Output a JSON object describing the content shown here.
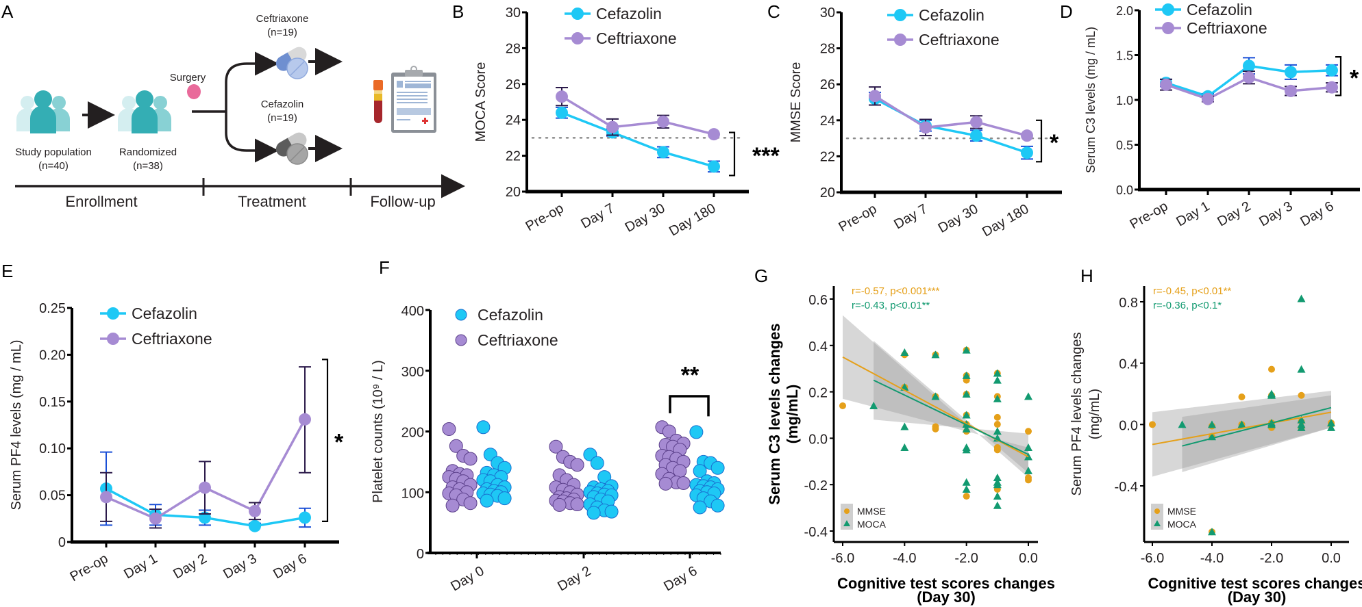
{
  "colors": {
    "cefazolin": "#1ec8f5",
    "cefazolin_err": "#1a4fd6",
    "ceftriaxone": "#a68bd3",
    "ceftriaxone_err": "#2b1a4a",
    "mmse": "#e5a01a",
    "moca": "#129a70",
    "ci_band": "#9a9a9a"
  },
  "panelA": {
    "label": "A",
    "study_population": "Study population",
    "study_population_n": "(n=40)",
    "randomized": "Randomized",
    "randomized_n": "(n=38)",
    "surgery": "Surgery",
    "ceftriaxone": "Ceftriaxone",
    "ceftriaxone_n": "(n=19)",
    "cefazolin": "Cefazolin",
    "cefazolin_n": "(n=19)",
    "phases": [
      "Enrollment",
      "Treatment",
      "Follow-up"
    ],
    "icons": [
      "people-group-icon",
      "people-group-icon",
      "surgery-dot-icon",
      "pills-icon",
      "pills-icon",
      "blood-tube-icon",
      "clipboard-icon"
    ]
  },
  "chart_data": [
    {
      "panel": "B",
      "type": "line",
      "ylabel": "MOCA Score",
      "xlabel": "",
      "categories": [
        "Pre-op",
        "Day 7",
        "Day 30",
        "Day 180"
      ],
      "ylim": [
        20,
        30
      ],
      "yticks": [
        20,
        22,
        24,
        26,
        28,
        30
      ],
      "reference_line": 23,
      "legend": "top",
      "series": [
        {
          "name": "Cefazolin",
          "values": [
            24.4,
            23.3,
            22.2,
            21.4
          ],
          "err": [
            0.3,
            0.2,
            0.3,
            0.3
          ]
        },
        {
          "name": "Ceftriaxone",
          "values": [
            25.3,
            23.6,
            23.9,
            23.2
          ],
          "err": [
            0.5,
            0.45,
            0.35,
            0.0
          ]
        }
      ],
      "significance": "***"
    },
    {
      "panel": "C",
      "type": "line",
      "ylabel": "MMSE Score",
      "xlabel": "",
      "categories": [
        "Pre-op",
        "Day 7",
        "Day 30",
        "Day 180"
      ],
      "ylim": [
        20,
        30
      ],
      "yticks": [
        20,
        22,
        24,
        26,
        28,
        30
      ],
      "reference_line": 23,
      "legend": "top",
      "series": [
        {
          "name": "Cefazolin",
          "values": [
            25.2,
            23.7,
            23.15,
            22.2
          ],
          "err": [
            0.35,
            0.3,
            0.3,
            0.35
          ]
        },
        {
          "name": "Ceftriaxone",
          "values": [
            25.35,
            23.6,
            23.9,
            23.15
          ],
          "err": [
            0.5,
            0.45,
            0.35,
            0.0
          ]
        }
      ],
      "significance": "*"
    },
    {
      "panel": "D",
      "type": "line",
      "ylabel": "Serum C3 levels  (mg / mL)",
      "xlabel": "",
      "categories": [
        "Pre-op",
        "Day 1",
        "Day 2",
        "Day 3",
        "Day 6"
      ],
      "ylim": [
        0,
        2
      ],
      "yticks": [
        "0.0",
        "0.5",
        "1.0",
        "1.5",
        "2.0"
      ],
      "legend": "top",
      "series": [
        {
          "name": "Cefazolin",
          "values": [
            1.19,
            1.04,
            1.38,
            1.31,
            1.33
          ],
          "err": [
            0.04,
            0.03,
            0.09,
            0.08,
            0.06
          ]
        },
        {
          "name": "Ceftriaxone",
          "values": [
            1.17,
            1.01,
            1.25,
            1.1,
            1.14
          ],
          "err": [
            0.06,
            0.03,
            0.07,
            0.05,
            0.05
          ]
        }
      ],
      "significance": "*"
    },
    {
      "panel": "E",
      "type": "line",
      "ylabel": "Serum PF4 levels  (mg / mL)",
      "xlabel": "",
      "categories": [
        "Pre-op",
        "Day 1",
        "Day 2",
        "Day 3",
        "Day 6"
      ],
      "ylim": [
        0,
        0.25
      ],
      "yticks": [
        "0",
        "0.05",
        "0.10",
        "0.15",
        "0.20",
        "0.25"
      ],
      "legend": "top-left",
      "series": [
        {
          "name": "Cefazolin",
          "values": [
            0.057,
            0.029,
            0.026,
            0.017,
            0.026
          ],
          "err_hi": [
            0.096,
            0.04,
            0.034,
            0.02,
            0.036
          ],
          "err_lo": [
            0.018,
            0.018,
            0.018,
            0.017,
            0.016
          ]
        },
        {
          "name": "Ceftriaxone",
          "values": [
            0.048,
            0.025,
            0.058,
            0.033,
            0.131
          ],
          "err_hi": [
            0.074,
            0.035,
            0.086,
            0.042,
            0.187
          ],
          "err_lo": [
            0.022,
            0.015,
            0.03,
            0.024,
            0.074
          ]
        }
      ],
      "significance": "*"
    },
    {
      "panel": "F",
      "type": "scatter",
      "ylabel": "Platelet counts (10⁹ / L)",
      "xlabel": "",
      "categories": [
        "Day 0",
        "Day 2",
        "Day 6"
      ],
      "ylim": [
        0,
        400
      ],
      "yticks": [
        0,
        100,
        200,
        300,
        400
      ],
      "legend": "top-left",
      "series": [
        {
          "name": "Ceftriaxone",
          "means": [
            114,
            111,
            152
          ],
          "values": [
            [
              204,
              176,
              160,
              155,
              135,
              130,
              128,
              125,
              122,
              118,
              112,
              108,
              105,
              100,
              98,
              95,
              88,
              82,
              78
            ],
            [
              175,
              158,
              150,
              145,
              128,
              120,
              112,
              108,
              104,
              100,
              96,
              92,
              90,
              88,
              86,
              85,
              82,
              80,
              79
            ],
            [
              207,
              200,
              185,
              180,
              178,
              175,
              170,
              160,
              158,
              155,
              150,
              145,
              140,
              135,
              130,
              122,
              116,
              115,
              114
            ]
          ]
        },
        {
          "name": "Cefazolin",
          "means": [
            120,
            98,
            118
          ],
          "values": [
            [
              207,
              162,
              148,
              140,
              132,
              128,
              125,
              120,
              118,
              112,
              108,
              105,
              102,
              100,
              98,
              96,
              94,
              90,
              86
            ],
            [
              162,
              148,
              125,
              110,
              108,
              105,
              102,
              100,
              98,
              96,
              95,
              92,
              88,
              85,
              80,
              75,
              70,
              68,
              66
            ],
            [
              199,
              150,
              148,
              140,
              135,
              118,
              115,
              112,
              110,
              108,
              105,
              102,
              100,
              98,
              95,
              90,
              85,
              78,
              75
            ]
          ]
        }
      ],
      "significance": "**"
    },
    {
      "panel": "G",
      "type": "scatter",
      "ylabel": "Serum C3 levels changes\n(mg/mL)",
      "xlabel": "Cognitive test scores changes\n(Day 30)",
      "xlim": [
        -6.2,
        0.2
      ],
      "ylim": [
        -0.42,
        0.65
      ],
      "xticks": [
        "-6.0",
        "-4.0",
        "-2.0",
        "0.0"
      ],
      "yticks": [
        "-0.4",
        "-0.2",
        "0.0",
        "0.2",
        "0.4",
        "0.6"
      ],
      "legend": "bottom-left",
      "annotations": [
        {
          "text": "r=-0.57, p<0.001***",
          "series": "MMSE"
        },
        {
          "text": "r=-0.43, p<0.01**",
          "series": "MOCA"
        }
      ],
      "series": [
        {
          "name": "MMSE",
          "marker": "circle",
          "fit": {
            "x": [
              -6,
              0
            ],
            "y": [
              0.35,
              -0.08
            ],
            "ci_lo": [
              0.17,
              -0.04
            ],
            "ci_hi": [
              0.53,
              -0.17
            ]
          },
          "points": [
            [
              -6,
              0.14
            ],
            [
              -4,
              0.36
            ],
            [
              -4,
              0.22
            ],
            [
              -3,
              0.36
            ],
            [
              -3,
              0.18
            ],
            [
              -3,
              0.05
            ],
            [
              -3,
              0.04
            ],
            [
              -2,
              0.38
            ],
            [
              -2,
              0.27
            ],
            [
              -2,
              0.25
            ],
            [
              -2,
              0.19
            ],
            [
              -2,
              0.1
            ],
            [
              -2,
              0.06
            ],
            [
              -2,
              0.03
            ],
            [
              -2,
              -0.25
            ],
            [
              -1,
              0.28
            ],
            [
              -1,
              0.18
            ],
            [
              -1,
              0.09
            ],
            [
              -1,
              0.06
            ],
            [
              -1,
              -0.04
            ],
            [
              -1,
              -0.05
            ],
            [
              -1,
              -0.22
            ],
            [
              0,
              0.03
            ],
            [
              0,
              -0.17
            ],
            [
              0,
              -0.18
            ]
          ]
        },
        {
          "name": "MOCA",
          "marker": "triangle",
          "fit": {
            "x": [
              -5,
              0
            ],
            "y": [
              0.25,
              -0.07
            ],
            "ci_lo": [
              0.08,
              0.02
            ],
            "ci_hi": [
              0.42,
              -0.15
            ]
          },
          "points": [
            [
              -5,
              0.14
            ],
            [
              -4,
              0.37
            ],
            [
              -4,
              0.22
            ],
            [
              -4,
              0.05
            ],
            [
              -4,
              -0.04
            ],
            [
              -3,
              0.36
            ],
            [
              -3,
              0.18
            ],
            [
              -2,
              0.38
            ],
            [
              -2,
              0.27
            ],
            [
              -2,
              0.19
            ],
            [
              -2,
              0.1
            ],
            [
              -2,
              0.06
            ],
            [
              -2,
              0.04
            ],
            [
              -2,
              -0.04
            ],
            [
              -2,
              -0.05
            ],
            [
              -2,
              -0.19
            ],
            [
              -2,
              -0.22
            ],
            [
              -1,
              0.28
            ],
            [
              -1,
              0.25
            ],
            [
              -1,
              0.17
            ],
            [
              -1,
              0.03
            ],
            [
              -1,
              0.0
            ],
            [
              -1,
              -0.17
            ],
            [
              -1,
              -0.19
            ],
            [
              -1,
              -0.2
            ],
            [
              -1,
              -0.25
            ],
            [
              -1,
              -0.29
            ],
            [
              0,
              0.18
            ],
            [
              0,
              -0.04
            ],
            [
              0,
              -0.08
            ],
            [
              0,
              -0.14
            ]
          ]
        }
      ]
    },
    {
      "panel": "H",
      "type": "scatter",
      "ylabel": "Serum PF4 levels changes\n(mg/mL)",
      "xlabel": "Cognitive test scores changes\n(Day 30)",
      "xlim": [
        -6.2,
        0.2
      ],
      "ylim": [
        -0.75,
        0.9
      ],
      "xticks": [
        "-6.0",
        "-4.0",
        "-2.0",
        "0.0"
      ],
      "yticks": [
        "-0.4",
        "0.0",
        "0.4",
        "0.8"
      ],
      "legend": "bottom-left",
      "annotations": [
        {
          "text": "r=-0.45, p<0.01**",
          "series": "MMSE"
        },
        {
          "text": "r=-0.36, p<0.1*",
          "series": "MOCA"
        }
      ],
      "series": [
        {
          "name": "MMSE",
          "marker": "circle",
          "fit": {
            "x": [
              -6,
              0
            ],
            "y": [
              -0.13,
              0.08
            ],
            "ci_lo": [
              -0.34,
              -0.02
            ],
            "ci_hi": [
              0.08,
              0.22
            ]
          },
          "points": [
            [
              -6,
              0.0
            ],
            [
              -4,
              -0.01
            ],
            [
              -4,
              -0.08
            ],
            [
              -4,
              -0.7
            ],
            [
              -3,
              0.18
            ],
            [
              -3,
              0.0
            ],
            [
              -2,
              0.36
            ],
            [
              -2,
              0.19
            ],
            [
              -2,
              0.01
            ],
            [
              -2,
              -0.02
            ],
            [
              -1,
              0.19
            ],
            [
              -1,
              0.02
            ],
            [
              -1,
              -0.02
            ],
            [
              0,
              0.01
            ],
            [
              0,
              0.0
            ]
          ]
        },
        {
          "name": "MOCA",
          "marker": "triangle",
          "fit": {
            "x": [
              -5,
              0
            ],
            "y": [
              -0.14,
              0.11
            ],
            "ci_lo": [
              -0.31,
              -0.02
            ],
            "ci_hi": [
              0.05,
              0.19
            ]
          },
          "points": [
            [
              -5,
              0.0
            ],
            [
              -4,
              0.0
            ],
            [
              -4,
              -0.08
            ],
            [
              -4,
              -0.7
            ],
            [
              -3,
              0.0
            ],
            [
              -2,
              0.2
            ],
            [
              -2,
              0.19
            ],
            [
              -2,
              0.01
            ],
            [
              -2,
              0.0
            ],
            [
              -1,
              0.82
            ],
            [
              -1,
              0.36
            ],
            [
              -1,
              0.03
            ],
            [
              -1,
              0.0
            ],
            [
              -1,
              -0.02
            ],
            [
              0,
              0.01
            ],
            [
              0,
              -0.02
            ]
          ]
        }
      ]
    }
  ]
}
